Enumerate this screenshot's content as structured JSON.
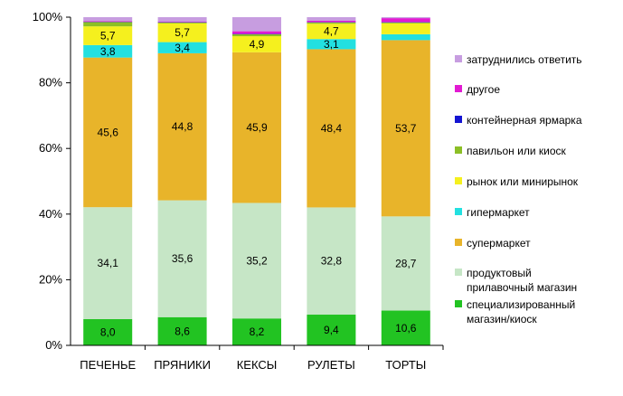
{
  "chart_data": {
    "type": "bar",
    "stacked": true,
    "percent_stacked": true,
    "title": "",
    "xlabel": "",
    "ylabel": "",
    "ylim": [
      0,
      100
    ],
    "y_ticks": [
      "0%",
      "20%",
      "40%",
      "60%",
      "80%",
      "100%"
    ],
    "grid": false,
    "legend_position": "right",
    "categories": [
      "ПЕЧЕНЬЕ",
      "ПРЯНИКИ",
      "КЕКСЫ",
      "РУЛЕТЫ",
      "ТОРТЫ"
    ],
    "series": [
      {
        "name": "специализированный магазин/киоск",
        "color": "#22c322",
        "values": [
          8.0,
          8.6,
          8.2,
          9.4,
          10.6
        ],
        "labels": [
          "8,0",
          "8,6",
          "8,2",
          "9,4",
          "10,6"
        ]
      },
      {
        "name": "продуктовый прилавочный магазин",
        "color": "#c6e6c6",
        "values": [
          34.1,
          35.6,
          35.2,
          32.8,
          28.7
        ],
        "labels": [
          "34,1",
          "35,6",
          "35,2",
          "32,8",
          "28,7"
        ]
      },
      {
        "name": "супермаркет",
        "color": "#e8b42a",
        "values": [
          45.6,
          44.8,
          45.9,
          48.4,
          53.7
        ],
        "labels": [
          "45,6",
          "44,8",
          "45,9",
          "48,4",
          "53,7"
        ]
      },
      {
        "name": "гипермаркет",
        "color": "#22e0e0",
        "values": [
          3.8,
          3.4,
          0.0,
          3.1,
          1.8
        ],
        "labels": [
          "3,8",
          "3,4",
          "",
          "3,1",
          ""
        ]
      },
      {
        "name": "рынок или минирынок",
        "color": "#f5f01e",
        "values": [
          5.7,
          5.7,
          4.9,
          4.7,
          3.3
        ],
        "labels": [
          "5,7",
          "5,7",
          "4,9",
          "4,7",
          ""
        ]
      },
      {
        "name": "павильон или киоск",
        "color": "#8cbf26",
        "values": [
          1.3,
          0.3,
          0.6,
          0.4,
          0.3
        ],
        "labels": [
          "",
          "",
          "",
          "",
          ""
        ]
      },
      {
        "name": "контейнерная ярмарка",
        "color": "#1414d2",
        "values": [
          0.1,
          0.1,
          0.1,
          0.1,
          0.1
        ],
        "labels": [
          "",
          "",
          "",
          "",
          ""
        ]
      },
      {
        "name": "другое",
        "color": "#e21ad2",
        "values": [
          0.2,
          0.2,
          0.8,
          0.4,
          1.2
        ],
        "labels": [
          "",
          "",
          "",
          "",
          ""
        ]
      },
      {
        "name": "затруднились ответить",
        "color": "#c79de0",
        "values": [
          1.2,
          1.3,
          4.3,
          1.1,
          0.3
        ],
        "labels": [
          "",
          "",
          "",
          "",
          ""
        ]
      }
    ],
    "legend_order": [
      {
        "series": 8,
        "lines": [
          "затруднились ответить"
        ]
      },
      {
        "series": 7,
        "lines": [
          "другое"
        ]
      },
      {
        "series": 6,
        "lines": [
          "контейнерная ярмарка"
        ]
      },
      {
        "series": 5,
        "lines": [
          "павильон или киоск"
        ]
      },
      {
        "series": 4,
        "lines": [
          "рынок или минирынок"
        ]
      },
      {
        "series": 3,
        "lines": [
          "гипермаркет"
        ]
      },
      {
        "series": 2,
        "lines": [
          "супермаркет"
        ]
      },
      {
        "series": 1,
        "lines": [
          "продуктовый",
          "прилавочный магазин"
        ]
      },
      {
        "series": 0,
        "lines": [
          "специализированный",
          "магазин/киоск"
        ]
      }
    ]
  }
}
